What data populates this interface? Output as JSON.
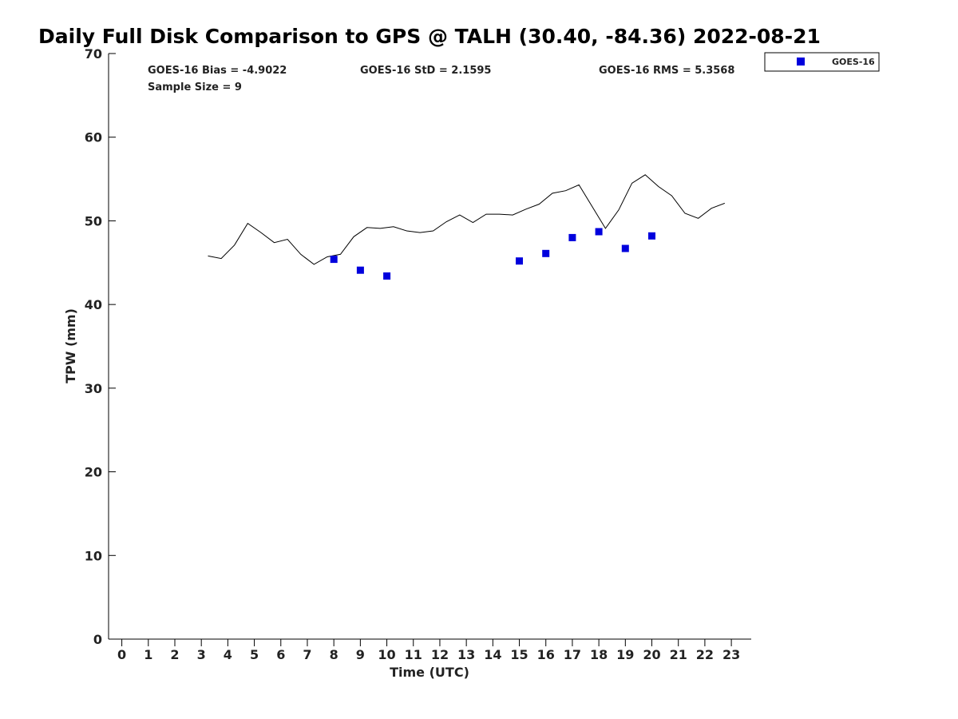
{
  "chart_data": {
    "type": "line",
    "title": "Daily Full Disk Comparison to GPS @ TALH (30.40, -84.36) 2022-08-21",
    "xlabel": "Time (UTC)",
    "ylabel": "TPW (mm)",
    "xlim": [
      -0.5,
      23.75
    ],
    "ylim": [
      0,
      70
    ],
    "x_ticks": [
      0,
      1,
      2,
      3,
      4,
      5,
      6,
      7,
      8,
      9,
      10,
      11,
      12,
      13,
      14,
      15,
      16,
      17,
      18,
      19,
      20,
      21,
      22,
      23
    ],
    "y_ticks": [
      0,
      10,
      20,
      30,
      40,
      50,
      60,
      70
    ],
    "grid": false,
    "stats": {
      "bias": "GOES-16 Bias = -4.9022",
      "std": "GOES-16 StD = 2.1595",
      "rms": "GOES-16 RMS = 5.3568",
      "sample": "Sample Size = 9"
    },
    "legend": {
      "placement": "top-right-outside",
      "entries": [
        "GOES-16"
      ]
    },
    "series": [
      {
        "kind": "line",
        "color": "#000000",
        "x": [
          3.25,
          3.75,
          4.25,
          4.75,
          5.25,
          5.75,
          6.25,
          6.75,
          7.25,
          7.75,
          8.25,
          8.75,
          9.25,
          9.75,
          10.25,
          10.75,
          11.25,
          11.75,
          12.25,
          12.75,
          13.25,
          13.75,
          14.25,
          14.75,
          15.25,
          15.75,
          16.25,
          16.75,
          17.25,
          17.75,
          18.25,
          18.75,
          19.25,
          19.75,
          20.25,
          20.75,
          21.25,
          21.75,
          22.25,
          22.75
        ],
        "values": [
          45.8,
          45.5,
          47.1,
          49.7,
          48.6,
          47.4,
          47.8,
          46.0,
          44.8,
          45.7,
          46.0,
          48.1,
          49.2,
          49.1,
          49.3,
          48.8,
          48.6,
          48.8,
          49.9,
          50.7,
          49.8,
          50.8,
          50.8,
          50.7,
          51.4,
          52.0,
          53.3,
          53.6,
          54.3,
          51.7,
          49.1,
          51.3,
          54.5,
          55.5,
          54.1,
          53.0,
          50.9,
          50.3,
          51.5,
          52.1
        ]
      },
      {
        "name": "GOES-16",
        "kind": "scatter",
        "color": "#0000dd",
        "x": [
          8,
          9,
          10,
          15,
          16,
          17,
          18,
          19,
          20
        ],
        "values": [
          45.4,
          44.1,
          43.4,
          45.2,
          46.1,
          48.0,
          48.7,
          46.7,
          48.2
        ]
      }
    ]
  }
}
